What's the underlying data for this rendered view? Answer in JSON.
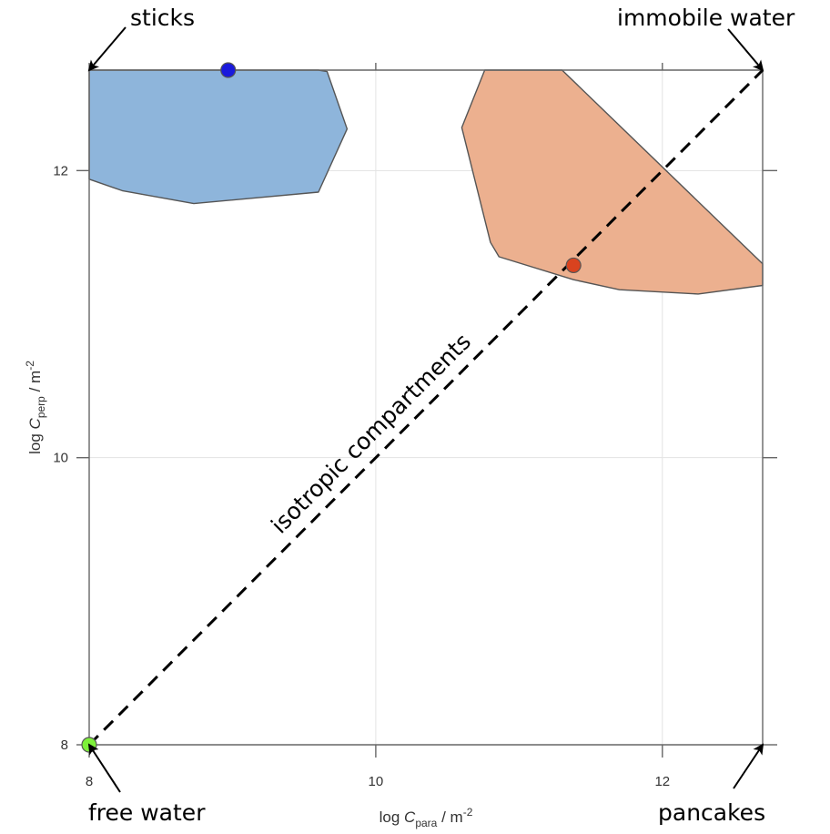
{
  "chart_data": {
    "type": "scatter",
    "xlabel_parts": [
      "log ",
      "C",
      "para",
      " / m",
      "-2"
    ],
    "ylabel_parts": [
      "log ",
      "C",
      "perp",
      " / m",
      "-2"
    ],
    "xlim": [
      8,
      12.7
    ],
    "ylim": [
      8,
      12.7
    ],
    "xticks": [
      8,
      10,
      12
    ],
    "yticks": [
      8,
      10,
      12
    ],
    "xtick_labels": [
      "8",
      "10",
      "12"
    ],
    "ytick_labels": [
      "8",
      "10",
      "12"
    ],
    "grid": true,
    "regions": [
      {
        "color": "#8eb5db",
        "points": [
          [
            8,
            12.7
          ],
          [
            9.6,
            12.7
          ],
          [
            9.66,
            12.69
          ],
          [
            9.8,
            12.29
          ],
          [
            9.6,
            11.85
          ],
          [
            8.73,
            11.77
          ],
          [
            8.23,
            11.86
          ],
          [
            8,
            11.94
          ]
        ]
      },
      {
        "color": "#ecb08f",
        "points": [
          [
            10.76,
            12.7
          ],
          [
            11.3,
            12.7
          ],
          [
            12.7,
            11.35
          ],
          [
            12.7,
            11.2
          ],
          [
            12.25,
            11.14
          ],
          [
            11.7,
            11.17
          ],
          [
            11.38,
            11.24
          ],
          [
            10.86,
            11.4
          ],
          [
            10.8,
            11.5
          ],
          [
            10.6,
            12.3
          ]
        ]
      }
    ],
    "points": [
      {
        "x": 8.97,
        "y": 12.7,
        "color": "#1a1adc"
      },
      {
        "x": 11.38,
        "y": 11.34,
        "color": "#d9431f"
      },
      {
        "x": 8,
        "y": 8,
        "color": "#7df03a"
      }
    ],
    "isotropic_line": {
      "from": [
        8,
        8
      ],
      "to": [
        12.7,
        12.7
      ],
      "label": "isotropic compartments"
    },
    "annotations": [
      {
        "text": "sticks",
        "target": [
          8,
          12.7
        ],
        "anchor": "top-left"
      },
      {
        "text": "immobile water",
        "target": [
          12.7,
          12.7
        ],
        "anchor": "top-right"
      },
      {
        "text": "free water",
        "target": [
          8,
          8
        ],
        "anchor": "bottom-left"
      },
      {
        "text": "pancakes",
        "target": [
          12.7,
          8
        ],
        "anchor": "bottom-right"
      }
    ]
  }
}
